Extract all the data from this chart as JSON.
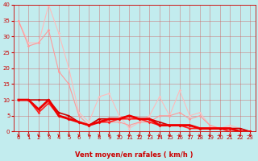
{
  "xlabel": "Vent moyen/en rafales ( km/h )",
  "xlim": [
    -0.5,
    23.5
  ],
  "ylim": [
    0,
    40
  ],
  "bg_color": "#c2ecee",
  "grid_color": "#cc6666",
  "lines": [
    {
      "x": [
        0,
        1,
        2,
        3,
        4,
        5,
        6,
        7,
        8,
        9,
        10,
        11,
        12,
        13,
        14,
        15,
        16,
        17,
        18,
        19,
        20,
        21,
        22,
        23
      ],
      "y": [
        35,
        28,
        28,
        40,
        31,
        20,
        6,
        3,
        11,
        12,
        5,
        1,
        3,
        5,
        11,
        5,
        13,
        5,
        6,
        2,
        1,
        2,
        1,
        0
      ],
      "color": "#ffbbbb",
      "lw": 0.8,
      "marker": "D",
      "ms": 1.8,
      "zorder": 2
    },
    {
      "x": [
        0,
        1,
        2,
        3,
        4,
        5,
        6,
        7,
        8,
        9,
        10,
        11,
        12,
        13,
        14,
        15,
        16,
        17,
        18,
        19,
        20,
        21,
        22,
        23
      ],
      "y": [
        35,
        27,
        28,
        32,
        19,
        15,
        5,
        2,
        4,
        3,
        3,
        2,
        3,
        3,
        5,
        5,
        6,
        4,
        5,
        2,
        1,
        1,
        1,
        0
      ],
      "color": "#ff9999",
      "lw": 0.8,
      "marker": "D",
      "ms": 1.8,
      "zorder": 2
    },
    {
      "x": [
        0,
        1,
        2,
        3,
        4,
        5,
        6,
        7,
        8,
        9,
        10,
        11,
        12,
        13,
        14,
        15,
        16,
        17,
        18,
        19,
        20,
        21,
        22,
        23
      ],
      "y": [
        10,
        10,
        10,
        10,
        6,
        5,
        3,
        2,
        4,
        4,
        4,
        5,
        4,
        4,
        3,
        2,
        2,
        2,
        1,
        1,
        1,
        1,
        1,
        0
      ],
      "color": "#cc0000",
      "lw": 1.2,
      "marker": "D",
      "ms": 1.8,
      "zorder": 3
    },
    {
      "x": [
        0,
        1,
        2,
        3,
        4,
        5,
        6,
        7,
        8,
        9,
        10,
        11,
        12,
        13,
        14,
        15,
        16,
        17,
        18,
        19,
        20,
        21,
        22,
        23
      ],
      "y": [
        10,
        10,
        7,
        10,
        5,
        4,
        3,
        2,
        3,
        4,
        4,
        5,
        4,
        4,
        2,
        2,
        2,
        2,
        1,
        1,
        1,
        1,
        0,
        0
      ],
      "color": "#ee0000",
      "lw": 2.0,
      "marker": "D",
      "ms": 1.8,
      "zorder": 4
    },
    {
      "x": [
        0,
        1,
        2,
        3,
        4,
        5,
        6,
        7,
        8,
        9,
        10,
        11,
        12,
        13,
        14,
        15,
        16,
        17,
        18,
        19,
        20,
        21,
        22,
        23
      ],
      "y": [
        10,
        10,
        6,
        9,
        5,
        4,
        3,
        2,
        3,
        3,
        4,
        4,
        4,
        3,
        2,
        2,
        2,
        1,
        1,
        1,
        1,
        0,
        0,
        0
      ],
      "color": "#ff2222",
      "lw": 1.2,
      "marker": "D",
      "ms": 1.8,
      "zorder": 3
    }
  ],
  "xticks": [
    0,
    1,
    2,
    3,
    4,
    5,
    6,
    7,
    8,
    9,
    10,
    11,
    12,
    13,
    14,
    15,
    16,
    17,
    18,
    19,
    20,
    21,
    22,
    23
  ],
  "yticks": [
    0,
    5,
    10,
    15,
    20,
    25,
    30,
    35,
    40
  ],
  "xlabel_color": "#cc0000",
  "xlabel_fontsize": 6,
  "tick_fontsize": 5,
  "tick_color": "#cc0000"
}
